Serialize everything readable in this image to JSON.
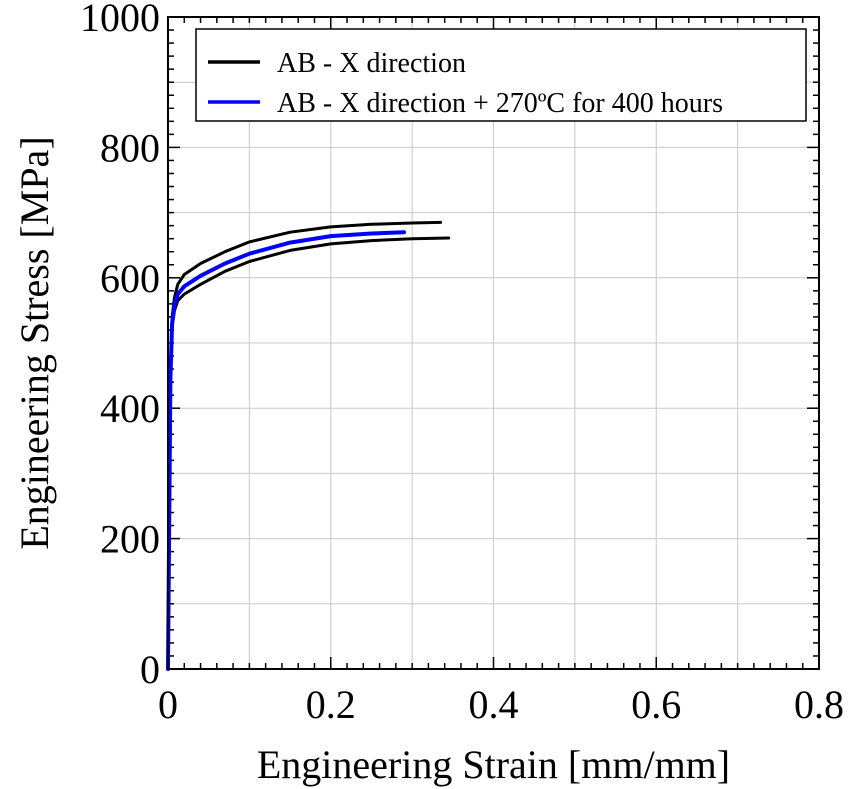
{
  "chart_data": {
    "type": "line",
    "xlabel": "Engineering Strain [mm/mm]",
    "ylabel": "Engineering Stress [MPa]",
    "xlim": [
      0,
      0.8
    ],
    "ylim": [
      0,
      1000
    ],
    "xticks": [
      0,
      0.2,
      0.4,
      0.6,
      0.8
    ],
    "xtick_labels": [
      "0",
      "0.2",
      "0.4",
      "0.6",
      "0.8"
    ],
    "yticks": [
      0,
      200,
      400,
      600,
      800,
      1000
    ],
    "ytick_labels": [
      "0",
      "200",
      "400",
      "600",
      "800",
      "1000"
    ],
    "grid": true,
    "legend": {
      "position": "top-right",
      "entries": [
        {
          "label": "AB - X direction",
          "color": "#000000"
        },
        {
          "label": "AB - X direction + 270ºC for 400 hours",
          "color": "#0000ff"
        }
      ]
    },
    "series": [
      {
        "name": "AB - X direction",
        "color": "#000000",
        "x": [
          0,
          0.003,
          0.005,
          0.008,
          0.012,
          0.02,
          0.04,
          0.07,
          0.1,
          0.15,
          0.2,
          0.25,
          0.3,
          0.335
        ],
        "y": [
          0,
          450,
          540,
          570,
          590,
          605,
          622,
          640,
          655,
          670,
          678,
          682,
          684,
          685
        ]
      },
      {
        "name": "",
        "color": "#000000",
        "x": [
          0,
          0.003,
          0.005,
          0.008,
          0.012,
          0.02,
          0.04,
          0.07,
          0.1,
          0.15,
          0.2,
          0.25,
          0.3,
          0.345
        ],
        "y": [
          0,
          440,
          525,
          550,
          565,
          575,
          590,
          610,
          625,
          642,
          652,
          657,
          660,
          661
        ]
      },
      {
        "name": "AB - X direction + 270ºC for 400 hours",
        "color": "#0000ff",
        "x": [
          0,
          0.003,
          0.005,
          0.008,
          0.012,
          0.02,
          0.04,
          0.07,
          0.1,
          0.15,
          0.2,
          0.25,
          0.29
        ],
        "y": [
          0,
          445,
          530,
          558,
          575,
          587,
          603,
          622,
          637,
          654,
          664,
          668,
          670
        ]
      }
    ]
  }
}
